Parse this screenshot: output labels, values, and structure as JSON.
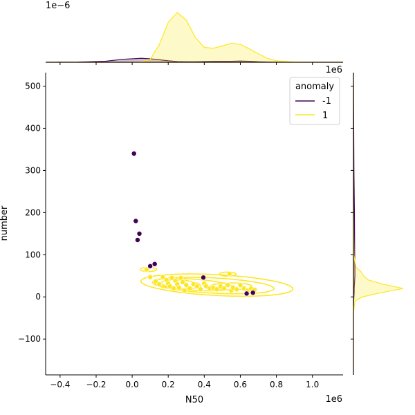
{
  "chart_data": {
    "type": "scatter",
    "subtype": "jointplot-kde",
    "title": "",
    "xlabel": "N50",
    "ylabel": "number",
    "x_offset_text": "1e6",
    "top_marginal_offset_text": "1e−6",
    "right_marginal_offset_text": "1e6",
    "xlim": [
      -0.48,
      1.17
    ],
    "ylim": [
      -185,
      532
    ],
    "x_ticks": [
      -0.4,
      -0.2,
      0.0,
      0.2,
      0.4,
      0.6,
      0.8,
      1.0
    ],
    "x_tick_labels": [
      "−0.4",
      "−0.2",
      "0.0",
      "0.2",
      "0.4",
      "0.6",
      "0.8",
      "1.0"
    ],
    "y_ticks": [
      -100,
      0,
      100,
      200,
      300,
      400,
      500
    ],
    "y_tick_labels": [
      "−100",
      "0",
      "100",
      "200",
      "300",
      "400",
      "500"
    ],
    "legend": {
      "title": "anomaly",
      "placement": "top-right",
      "entries": [
        {
          "label": "-1",
          "color": "#440154"
        },
        {
          "label": "1",
          "color": "#fde725"
        }
      ]
    },
    "series": [
      {
        "name": "-1",
        "color": "#440154",
        "points": [
          {
            "x": 0.01,
            "y": 340
          },
          {
            "x": 0.02,
            "y": 180
          },
          {
            "x": 0.04,
            "y": 150
          },
          {
            "x": 0.03,
            "y": 135
          },
          {
            "x": 0.1,
            "y": 73
          },
          {
            "x": 0.125,
            "y": 78
          },
          {
            "x": 0.395,
            "y": 46
          },
          {
            "x": 0.635,
            "y": 8
          },
          {
            "x": 0.67,
            "y": 10
          }
        ]
      },
      {
        "name": "1",
        "color": "#fde725",
        "points": [
          {
            "x": 0.08,
            "y": 65
          },
          {
            "x": 0.1,
            "y": 47
          },
          {
            "x": 0.13,
            "y": 37
          },
          {
            "x": 0.15,
            "y": 30
          },
          {
            "x": 0.17,
            "y": 47
          },
          {
            "x": 0.19,
            "y": 40
          },
          {
            "x": 0.2,
            "y": 32
          },
          {
            "x": 0.21,
            "y": 25
          },
          {
            "x": 0.22,
            "y": 45
          },
          {
            "x": 0.23,
            "y": 20
          },
          {
            "x": 0.24,
            "y": 38
          },
          {
            "x": 0.25,
            "y": 30
          },
          {
            "x": 0.26,
            "y": 22
          },
          {
            "x": 0.27,
            "y": 45
          },
          {
            "x": 0.28,
            "y": 35
          },
          {
            "x": 0.29,
            "y": 15
          },
          {
            "x": 0.3,
            "y": 28
          },
          {
            "x": 0.32,
            "y": 20
          },
          {
            "x": 0.34,
            "y": 30
          },
          {
            "x": 0.36,
            "y": 25
          },
          {
            "x": 0.38,
            "y": 18
          },
          {
            "x": 0.4,
            "y": 32
          },
          {
            "x": 0.41,
            "y": 25
          },
          {
            "x": 0.43,
            "y": 20
          },
          {
            "x": 0.45,
            "y": 22
          },
          {
            "x": 0.47,
            "y": 18
          },
          {
            "x": 0.49,
            "y": 25
          },
          {
            "x": 0.51,
            "y": 20
          },
          {
            "x": 0.53,
            "y": 28
          },
          {
            "x": 0.54,
            "y": 55
          },
          {
            "x": 0.55,
            "y": 15
          },
          {
            "x": 0.56,
            "y": 22
          },
          {
            "x": 0.58,
            "y": 18
          },
          {
            "x": 0.6,
            "y": 28
          },
          {
            "x": 0.62,
            "y": 20
          },
          {
            "x": 0.64,
            "y": 15
          },
          {
            "x": 0.66,
            "y": 20
          },
          {
            "x": 0.68,
            "y": 17
          }
        ]
      }
    ],
    "marginal_x_density": {
      "x": [
        -0.48,
        -0.3,
        -0.15,
        -0.05,
        0.05,
        0.1,
        0.15,
        0.2,
        0.25,
        0.3,
        0.35,
        0.4,
        0.45,
        0.5,
        0.55,
        0.6,
        0.65,
        0.7,
        0.75,
        0.8,
        0.9,
        1.0,
        1.17
      ],
      "minus1": [
        0,
        0.003,
        0.02,
        0.06,
        0.08,
        0.07,
        0.05,
        0.03,
        0.015,
        0.01,
        0.01,
        0.015,
        0.02,
        0.02,
        0.02,
        0.025,
        0.02,
        0.01,
        0.005,
        0.002,
        0,
        0,
        0
      ],
      "plus1": [
        0,
        0,
        0,
        0,
        0.005,
        0.06,
        0.35,
        0.8,
        1.0,
        0.85,
        0.5,
        0.3,
        0.28,
        0.33,
        0.38,
        0.36,
        0.27,
        0.17,
        0.08,
        0.03,
        0.005,
        0,
        0
      ]
    },
    "marginal_y_density": {
      "y": [
        -185,
        -40,
        -10,
        0,
        10,
        20,
        30,
        40,
        50,
        60,
        70,
        100,
        200,
        300,
        532
      ],
      "minus1": [
        0,
        0,
        0.005,
        0.01,
        0.015,
        0.015,
        0.02,
        0.025,
        0.03,
        0.03,
        0.03,
        0.025,
        0.02,
        0.01,
        0
      ],
      "plus1": [
        0,
        0,
        0.03,
        0.18,
        0.55,
        1.0,
        0.6,
        0.3,
        0.2,
        0.15,
        0.05,
        0.01,
        0,
        0,
        0
      ]
    }
  }
}
